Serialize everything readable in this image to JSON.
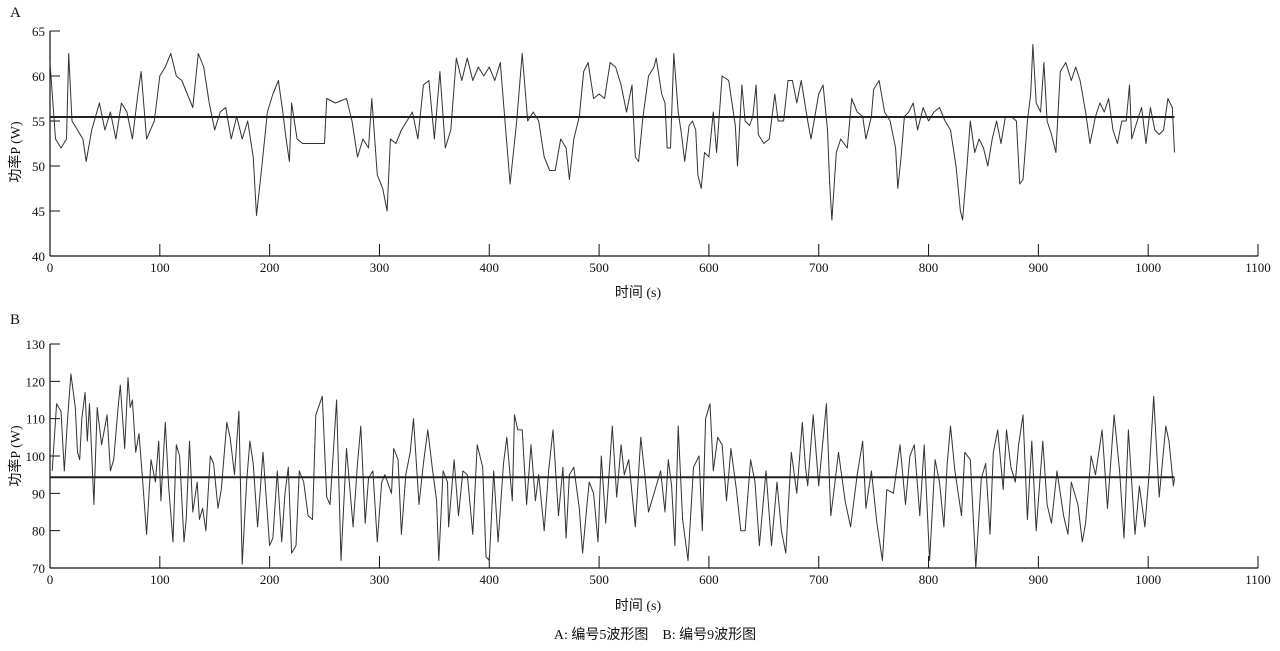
{
  "caption": "A: 编号5波形图    B: 编号9波形图",
  "colors": {
    "line": "#333333",
    "mean": "#222222",
    "axis": "#111111"
  },
  "chart_data": [
    {
      "type": "line",
      "panel": "A",
      "title": "",
      "xlabel": "时间 (s)",
      "ylabel": "功率P (W)",
      "xlim": [
        0,
        1100
      ],
      "ylim": [
        40,
        65
      ],
      "xticks": [
        0,
        100,
        200,
        300,
        400,
        500,
        600,
        700,
        800,
        900,
        1000,
        1100
      ],
      "yticks": [
        40,
        45,
        50,
        55,
        60,
        65
      ],
      "grid": false,
      "mean": 55.45,
      "series": [
        {
          "name": "编号5",
          "x": [
            0,
            5,
            10,
            15,
            17,
            20,
            25,
            30,
            33,
            38,
            45,
            50,
            55,
            60,
            65,
            70,
            75,
            80,
            83,
            88,
            95,
            100,
            105,
            110,
            115,
            120,
            125,
            130,
            135,
            140,
            145,
            150,
            155,
            160,
            165,
            170,
            175,
            180,
            185,
            188,
            193,
            198,
            203,
            208,
            212,
            215,
            218,
            220,
            225,
            230,
            250,
            252,
            260,
            270,
            275,
            280,
            285,
            290,
            293,
            298,
            303,
            307,
            310,
            315,
            320,
            325,
            330,
            335,
            340,
            345,
            350,
            355,
            360,
            365,
            370,
            375,
            380,
            385,
            390,
            395,
            400,
            405,
            410,
            415,
            419,
            425,
            430,
            435,
            440,
            445,
            450,
            455,
            460,
            465,
            470,
            473,
            477,
            482,
            486,
            490,
            495,
            500,
            505,
            510,
            515,
            520,
            525,
            530,
            533,
            536,
            540,
            545,
            550,
            552,
            557,
            560,
            562,
            565,
            568,
            572,
            575,
            578,
            582,
            585,
            588,
            590,
            593,
            596,
            600,
            604,
            607,
            612,
            618,
            624,
            626,
            630,
            633,
            637,
            640,
            643,
            645,
            650,
            655,
            660,
            663,
            668,
            672,
            676,
            680,
            684,
            690,
            693,
            700,
            704,
            708,
            710,
            712,
            716,
            720,
            726,
            730,
            735,
            740,
            743,
            748,
            750,
            755,
            760,
            765,
            770,
            772,
            775,
            778,
            782,
            786,
            790,
            795,
            800,
            805,
            810,
            815,
            820,
            825,
            829,
            831,
            835,
            838,
            842,
            846,
            850,
            854,
            858,
            862,
            866,
            870,
            875,
            880,
            883,
            886,
            890,
            893,
            895,
            898,
            902,
            905,
            908,
            912,
            916,
            920,
            925,
            930,
            934,
            938,
            943,
            947,
            952,
            956,
            960,
            964,
            968,
            972,
            976,
            980,
            983,
            985,
            990,
            994,
            998,
            1002,
            1006,
            1010,
            1014,
            1018,
            1022,
            1024
          ],
          "y": [
            61.5,
            53,
            52,
            53,
            62.5,
            55,
            54,
            53,
            50.5,
            54,
            57,
            54,
            56,
            53,
            57,
            56,
            53,
            58,
            60.5,
            53,
            55,
            60,
            61,
            62.5,
            60,
            59.5,
            58,
            56.5,
            62.5,
            61,
            57,
            54,
            56,
            56.5,
            53,
            55.5,
            53,
            55,
            51,
            44.5,
            50,
            56,
            58,
            59.5,
            56,
            53,
            50.5,
            57,
            53,
            52.5,
            52.5,
            57.5,
            57,
            57.5,
            55,
            51,
            53,
            52,
            57.5,
            49,
            47.5,
            45,
            53,
            52.5,
            54,
            55,
            56,
            53,
            59,
            59.5,
            53,
            60.5,
            52,
            54,
            62,
            59.5,
            62,
            59.5,
            61,
            60,
            61,
            59.5,
            61.5,
            54,
            48,
            55,
            62.5,
            55,
            56,
            55,
            51,
            49.5,
            49.5,
            53,
            52,
            48.5,
            53,
            55.5,
            60.5,
            61.5,
            57.5,
            58,
            57.5,
            61.5,
            61,
            59,
            56,
            59,
            51,
            50.5,
            55.5,
            60,
            61,
            62,
            58,
            57,
            52,
            52,
            62.5,
            56,
            53.5,
            50.5,
            54.5,
            55,
            54,
            49,
            47.5,
            51.5,
            51,
            56,
            51.5,
            60,
            59.5,
            54.5,
            50,
            59,
            55,
            54.5,
            55.5,
            59,
            53.5,
            52.5,
            53,
            58,
            55,
            55,
            59.5,
            59.5,
            57,
            59.5,
            55,
            53,
            58,
            59,
            54,
            48,
            44,
            51.5,
            53,
            52,
            57.5,
            56,
            55.5,
            53,
            55.5,
            58.5,
            59.5,
            56,
            55,
            52,
            47.5,
            51,
            55.5,
            56,
            57,
            54,
            56.5,
            55,
            56,
            56.5,
            55,
            54,
            50,
            45,
            44,
            50,
            55,
            51.5,
            53,
            52,
            50,
            53,
            55,
            52.5,
            55.5,
            55.5,
            55,
            48,
            48.5,
            55,
            58,
            63.5,
            57,
            56,
            61.5,
            55,
            53.5,
            51.5,
            60.5,
            61.5,
            59.5,
            61,
            59.5,
            56,
            52.5,
            55.5,
            57,
            56,
            57.5,
            54,
            52.5,
            55,
            55,
            59,
            53,
            55,
            56.5,
            52.5,
            56.5,
            54,
            53.5,
            54,
            57.5,
            56.5,
            51.5
          ]
        }
      ]
    },
    {
      "type": "line",
      "panel": "B",
      "title": "",
      "xlabel": "时间 (s)",
      "ylabel": "功率P (W)",
      "xlim": [
        0,
        1100
      ],
      "ylim": [
        70,
        130
      ],
      "xticks": [
        0,
        100,
        200,
        300,
        400,
        500,
        600,
        700,
        800,
        900,
        1000,
        1100
      ],
      "yticks": [
        70,
        80,
        90,
        100,
        110,
        120,
        130
      ],
      "grid": false,
      "mean": 94.3,
      "series": [
        {
          "name": "编号9",
          "x": [
            2,
            6,
            10,
            13,
            16,
            19,
            23,
            25,
            27,
            29,
            32,
            34,
            36,
            40,
            43,
            47,
            52,
            55,
            58,
            62,
            64,
            68,
            71,
            73,
            75,
            78,
            81,
            84,
            88,
            92,
            96,
            99,
            101,
            105,
            108,
            112,
            115,
            118,
            122,
            124,
            127,
            130,
            134,
            136,
            139,
            142,
            146,
            149,
            153,
            156,
            161,
            164,
            168,
            172,
            175,
            179,
            182,
            185,
            189,
            194,
            200,
            203,
            207,
            211,
            214,
            217,
            220,
            224,
            227,
            231,
            235,
            239,
            242,
            248,
            252,
            255,
            261,
            265,
            270,
            276,
            280,
            283,
            287,
            290,
            294,
            298,
            302,
            305,
            311,
            313,
            317,
            320,
            324,
            328,
            331,
            336,
            340,
            344,
            348,
            352,
            354,
            358,
            362,
            363,
            368,
            372,
            376,
            380,
            385,
            389,
            394,
            397,
            400,
            404,
            408,
            413,
            416,
            421,
            423,
            426,
            430,
            434,
            438,
            442,
            445,
            450,
            454,
            458,
            463,
            467,
            470,
            473,
            477,
            482,
            485,
            489,
            491,
            495,
            499,
            502,
            506,
            512,
            516,
            520,
            523,
            527,
            533,
            538,
            542,
            545,
            551,
            556,
            560,
            563,
            566,
            569,
            572,
            576,
            581,
            586,
            591,
            594,
            597,
            601,
            604,
            608,
            612,
            616,
            620,
            625,
            629,
            633,
            638,
            642,
            646,
            652,
            657,
            662,
            666,
            670,
            675,
            680,
            685,
            688,
            690,
            695,
            700,
            707,
            711,
            714,
            718,
            724,
            729,
            735,
            740,
            743,
            748,
            753,
            758,
            762,
            768,
            774,
            779,
            783,
            787,
            792,
            796,
            801,
            806,
            810,
            814,
            817,
            820,
            824,
            830,
            833,
            838,
            843,
            848,
            852,
            856,
            859,
            863,
            868,
            871,
            875,
            879,
            882,
            886,
            890,
            894,
            898,
            904,
            908,
            912,
            917,
            923,
            927,
            930,
            936,
            940,
            943,
            948,
            952,
            958,
            963,
            969,
            974,
            978,
            982,
            988,
            992,
            997,
            1001,
            1005,
            1010,
            1016,
            1019,
            1023,
            1024
          ],
          "y": [
            96,
            114,
            112,
            96,
            110,
            122,
            113,
            101,
            99,
            110,
            117,
            104,
            114,
            87,
            113,
            103,
            111,
            96,
            99,
            113,
            119,
            102,
            121,
            113,
            115,
            101,
            106,
            95,
            79,
            99,
            93,
            104,
            88,
            109,
            92,
            77,
            103,
            100,
            77,
            83,
            104,
            85,
            93,
            83,
            86,
            80,
            100,
            98,
            86,
            91,
            109,
            105,
            95,
            112,
            71,
            93,
            104,
            98,
            81,
            101,
            76,
            78,
            96,
            77,
            90,
            97,
            74,
            76,
            96,
            93,
            84,
            83,
            111,
            116,
            89,
            87,
            115,
            72,
            102,
            81,
            98,
            108,
            82,
            94,
            96,
            77,
            93,
            95,
            90,
            102,
            99,
            79,
            95,
            101,
            110,
            87,
            98,
            107,
            97,
            88,
            72,
            96,
            93,
            81,
            99,
            84,
            96,
            95,
            79,
            103,
            97,
            73,
            72,
            96,
            77,
            98,
            105,
            88,
            111,
            107,
            107,
            87,
            103,
            88,
            95,
            80,
            96,
            107,
            84,
            97,
            78,
            95,
            97,
            86,
            74,
            87,
            93,
            90,
            77,
            100,
            82,
            108,
            89,
            103,
            95,
            99,
            81,
            105,
            94,
            85,
            91,
            96,
            85,
            99,
            92,
            76,
            108,
            83,
            72,
            97,
            100,
            80,
            110,
            114,
            96,
            105,
            103,
            88,
            102,
            91,
            80,
            80,
            99,
            93,
            76,
            96,
            76,
            93,
            80,
            74,
            101,
            90,
            109,
            97,
            92,
            111,
            92,
            114,
            84,
            91,
            101,
            88,
            81,
            95,
            104,
            86,
            96,
            82,
            72,
            91,
            90,
            103,
            87,
            100,
            103,
            84,
            103,
            72,
            99,
            93,
            81,
            98,
            108,
            96,
            84,
            101,
            99,
            70,
            94,
            98,
            79,
            101,
            107,
            91,
            107,
            97,
            93,
            103,
            111,
            83,
            104,
            80,
            104,
            87,
            82,
            96,
            84,
            79,
            93,
            87,
            77,
            82,
            100,
            95,
            107,
            86,
            111,
            96,
            78,
            107,
            79,
            92,
            81,
            96,
            116,
            89,
            108,
            104,
            92,
            94
          ]
        }
      ]
    }
  ]
}
